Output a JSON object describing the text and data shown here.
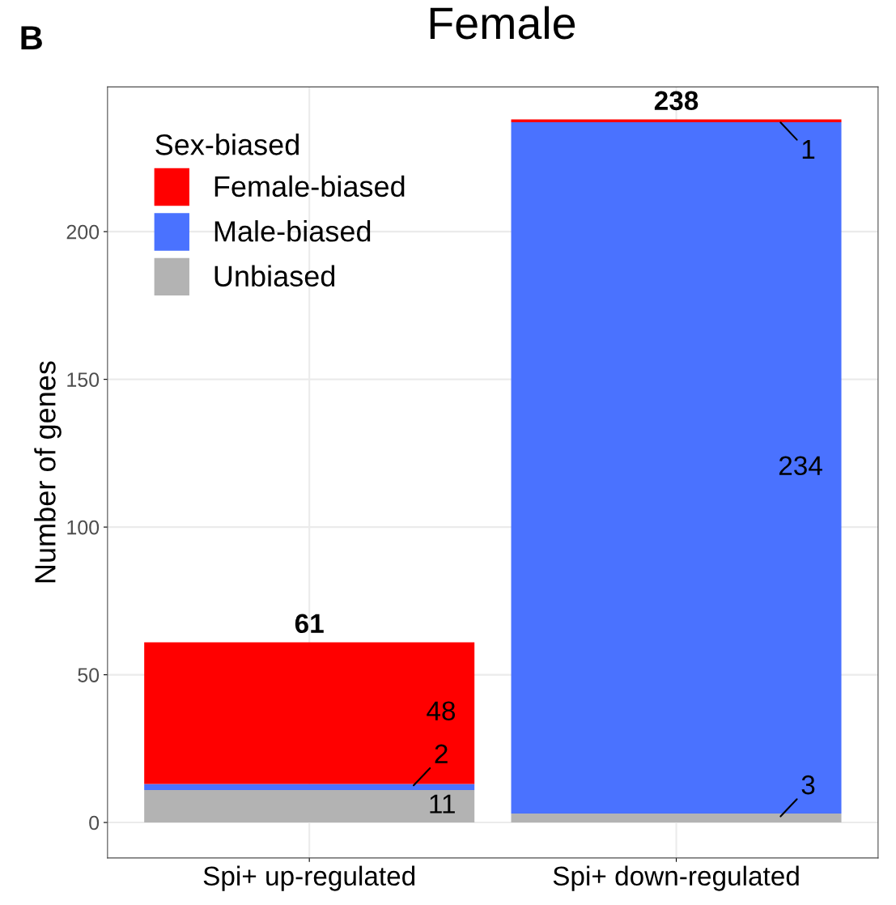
{
  "chart_data": {
    "type": "bar",
    "title": "Female",
    "annotations": [
      "B"
    ],
    "ylabel": "Number of genes",
    "legend_title": "Sex-biased",
    "stacked": true,
    "categories": [
      "Spi+ up-regulated",
      "Spi+ down-regulated"
    ],
    "series": [
      {
        "name": "Unbiased",
        "color": "#b3b3b3",
        "values": [
          11,
          3
        ],
        "value_labels": [
          "11",
          "3"
        ]
      },
      {
        "name": "Male-biased",
        "color": "#4a72ff",
        "values": [
          2,
          234
        ],
        "value_labels": [
          "2",
          "234"
        ]
      },
      {
        "name": "Female-biased",
        "color": "#ff0000",
        "values": [
          48,
          1
        ],
        "value_labels": [
          "48",
          "1"
        ]
      }
    ],
    "totals": [
      "61",
      "238"
    ],
    "ylim": [
      -12,
      249
    ],
    "yticks": [
      0,
      50,
      100,
      150,
      200
    ],
    "grid": true,
    "legend": "top left"
  }
}
